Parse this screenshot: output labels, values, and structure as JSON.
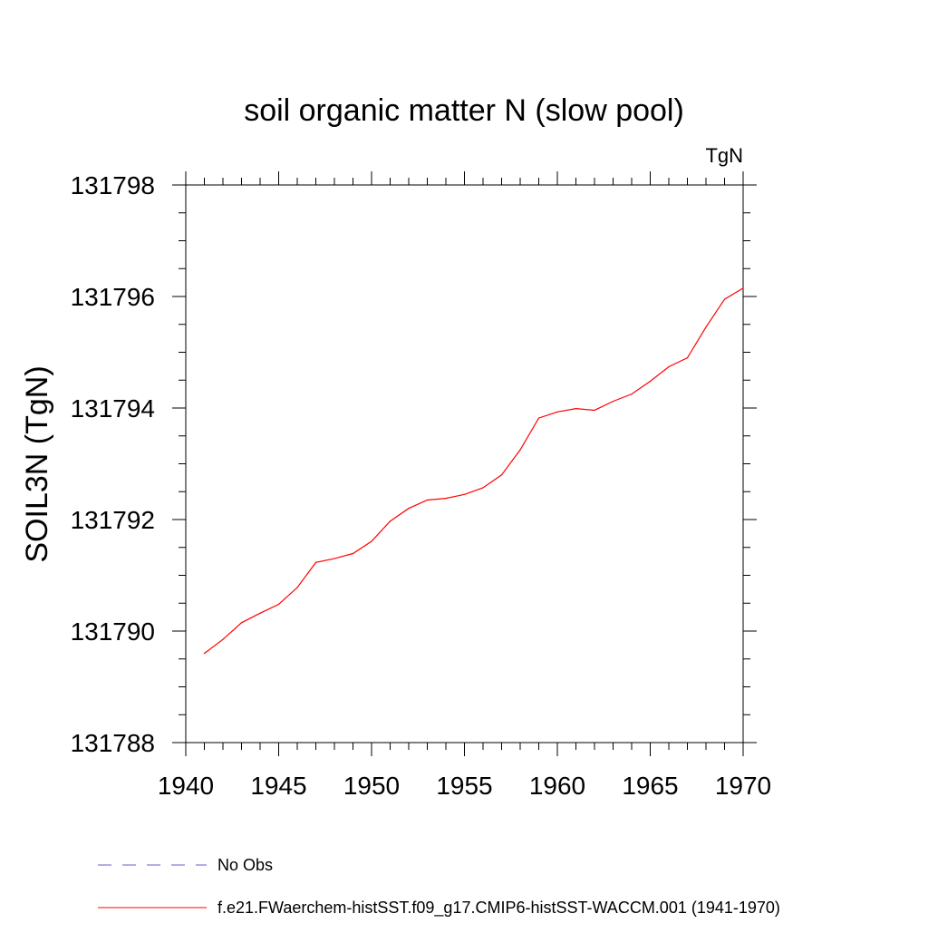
{
  "chart_data": {
    "type": "line",
    "title": "soil organic matter N (slow pool)",
    "units_label": "TgN",
    "ylabel": "SOIL3N  (TgN)",
    "xlabel": "",
    "xlim": [
      1940,
      1970
    ],
    "ylim": [
      131788,
      131798
    ],
    "x_ticks": [
      1940,
      1945,
      1950,
      1955,
      1960,
      1965,
      1970
    ],
    "y_ticks": [
      131788,
      131790,
      131792,
      131794,
      131796,
      131798
    ],
    "x_minor_step": 1,
    "y_minor_step": 0.5,
    "grid": false,
    "legend_position": "bottom",
    "series": [
      {
        "name": "f.e21.FWaerchem-histSST.f09_g17.CMIP6-histSST-WACCM.001 (1941-1970)",
        "color": "#ff0000",
        "style": "solid",
        "x": [
          1941,
          1942,
          1943,
          1944,
          1945,
          1946,
          1947,
          1948,
          1949,
          1950,
          1951,
          1952,
          1953,
          1954,
          1955,
          1956,
          1957,
          1958,
          1959,
          1960,
          1961,
          1962,
          1963,
          1964,
          1965,
          1966,
          1967,
          1968,
          1969,
          1970
        ],
        "values": [
          131789.6,
          131789.85,
          131790.15,
          131790.32,
          131790.48,
          131790.78,
          131791.23,
          131791.3,
          131791.39,
          131791.61,
          131791.97,
          131792.2,
          131792.35,
          131792.38,
          131792.45,
          131792.57,
          131792.8,
          131793.25,
          131793.82,
          131793.93,
          131793.99,
          131793.96,
          131794.12,
          131794.25,
          131794.48,
          131794.74,
          131794.9,
          131795.45,
          131795.95,
          131796.15
        ]
      }
    ],
    "legend": [
      {
        "label": "No Obs",
        "color": "#6a5acd",
        "style": "dashed"
      },
      {
        "label": "f.e21.FWaerchem-histSST.f09_g17.CMIP6-histSST-WACCM.001 (1941-1970)",
        "color": "#ff0000",
        "style": "solid"
      }
    ]
  }
}
